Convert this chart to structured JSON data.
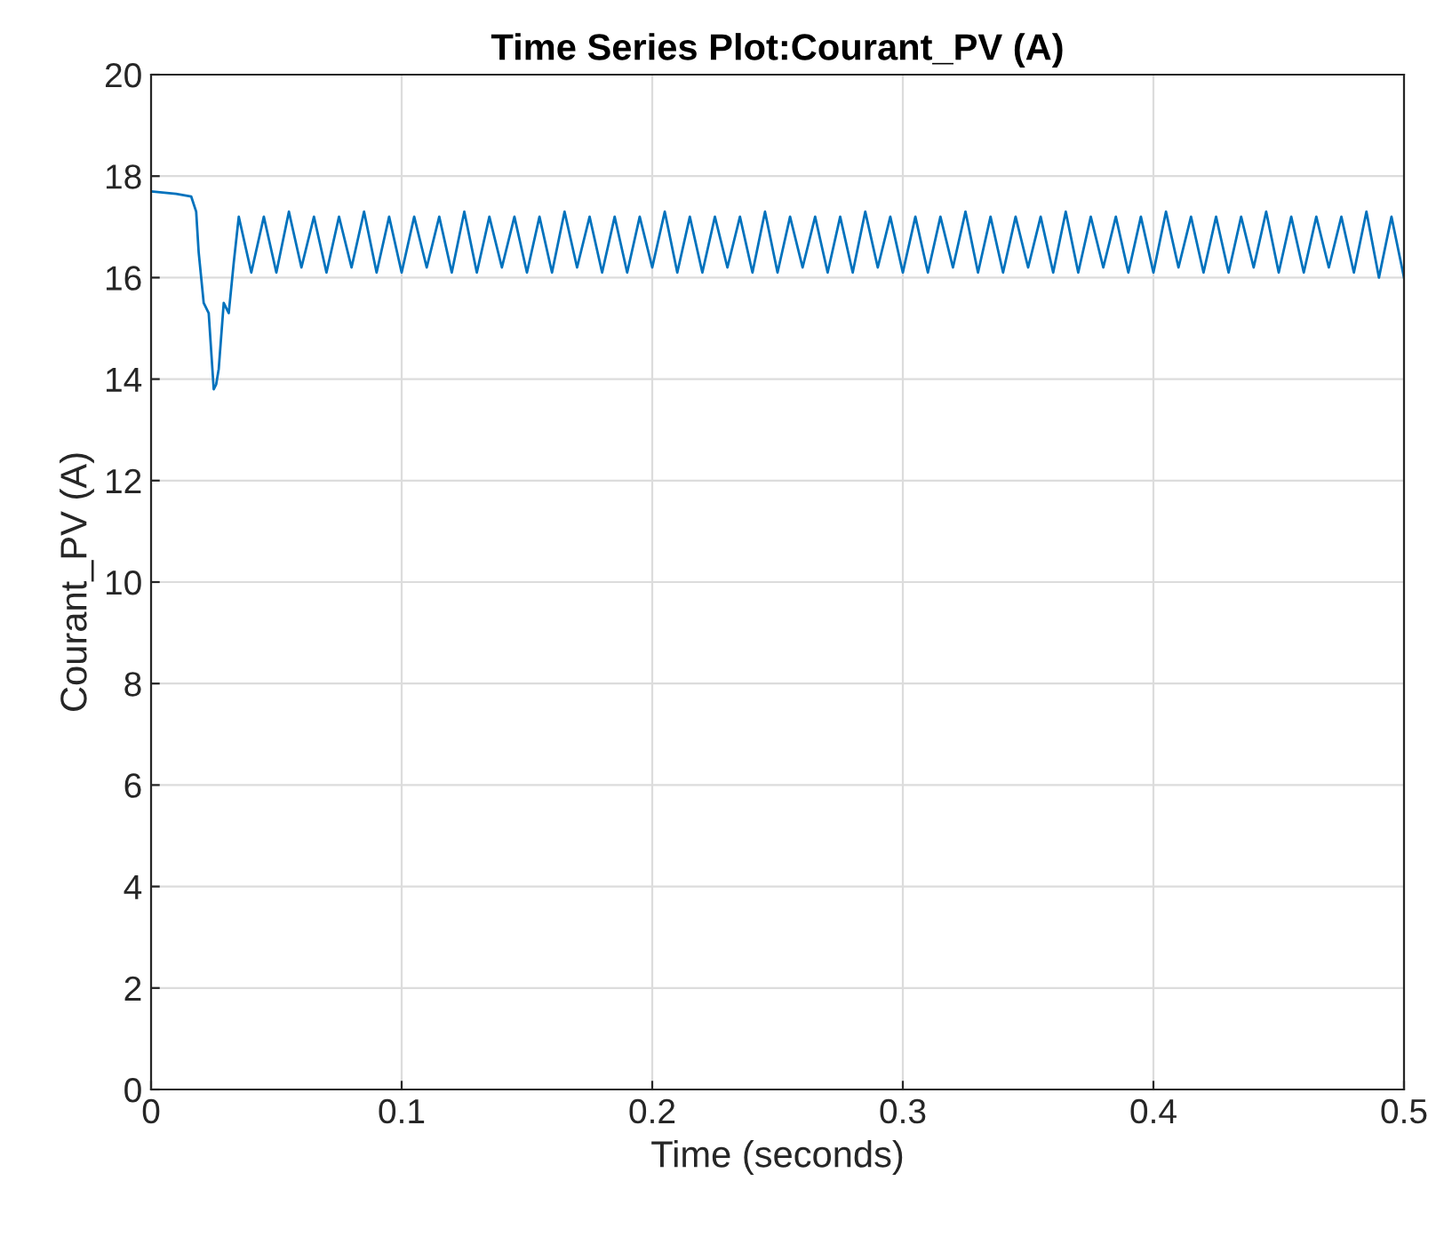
{
  "chart_data": {
    "type": "line",
    "title": "Time Series Plot:Courant_PV (A)",
    "xlabel": "Time (seconds)",
    "ylabel": "Courant_PV (A)",
    "xlim": [
      0,
      0.5
    ],
    "ylim": [
      0,
      20
    ],
    "xticks": [
      0,
      0.1,
      0.2,
      0.3,
      0.4,
      0.5
    ],
    "yticks": [
      0,
      2,
      4,
      6,
      8,
      10,
      12,
      14,
      16,
      18,
      20
    ],
    "grid": true,
    "series": [
      {
        "color": "#0072bd",
        "x": [
          0,
          0.01,
          0.016,
          0.018,
          0.019,
          0.021,
          0.023,
          0.025,
          0.026,
          0.027,
          0.029,
          0.031,
          0.033,
          0.035,
          0.04,
          0.045,
          0.05,
          0.055,
          0.06,
          0.065,
          0.07,
          0.075,
          0.08,
          0.085,
          0.09,
          0.095,
          0.1,
          0.105,
          0.11,
          0.115,
          0.12,
          0.125,
          0.13,
          0.135,
          0.14,
          0.145,
          0.15,
          0.155,
          0.16,
          0.165,
          0.17,
          0.175,
          0.18,
          0.185,
          0.19,
          0.195,
          0.2,
          0.205,
          0.21,
          0.215,
          0.22,
          0.225,
          0.23,
          0.235,
          0.24,
          0.245,
          0.25,
          0.255,
          0.26,
          0.265,
          0.27,
          0.275,
          0.28,
          0.285,
          0.29,
          0.295,
          0.3,
          0.305,
          0.31,
          0.315,
          0.32,
          0.325,
          0.33,
          0.335,
          0.34,
          0.345,
          0.35,
          0.355,
          0.36,
          0.365,
          0.37,
          0.375,
          0.38,
          0.385,
          0.39,
          0.395,
          0.4,
          0.405,
          0.41,
          0.415,
          0.42,
          0.425,
          0.43,
          0.435,
          0.44,
          0.445,
          0.45,
          0.455,
          0.46,
          0.465,
          0.47,
          0.475,
          0.48,
          0.485,
          0.49,
          0.495,
          0.5
        ],
        "values": [
          17.7,
          17.65,
          17.6,
          17.3,
          16.5,
          15.5,
          15.3,
          13.8,
          13.9,
          14.2,
          15.5,
          15.3,
          16.3,
          17.2,
          16.1,
          17.2,
          16.1,
          17.3,
          16.2,
          17.2,
          16.1,
          17.2,
          16.2,
          17.3,
          16.1,
          17.2,
          16.1,
          17.2,
          16.2,
          17.2,
          16.1,
          17.3,
          16.1,
          17.2,
          16.2,
          17.2,
          16.1,
          17.2,
          16.1,
          17.3,
          16.2,
          17.2,
          16.1,
          17.2,
          16.1,
          17.2,
          16.2,
          17.3,
          16.1,
          17.2,
          16.1,
          17.2,
          16.2,
          17.2,
          16.1,
          17.3,
          16.1,
          17.2,
          16.2,
          17.2,
          16.1,
          17.2,
          16.1,
          17.3,
          16.2,
          17.2,
          16.1,
          17.2,
          16.1,
          17.2,
          16.2,
          17.3,
          16.1,
          17.2,
          16.1,
          17.2,
          16.2,
          17.2,
          16.1,
          17.3,
          16.1,
          17.2,
          16.2,
          17.2,
          16.1,
          17.2,
          16.1,
          17.3,
          16.2,
          17.2,
          16.1,
          17.2,
          16.1,
          17.2,
          16.2,
          17.3,
          16.1,
          17.2,
          16.1,
          17.2,
          16.2,
          17.2,
          16.1,
          17.3,
          16.0,
          17.2,
          16.0
        ]
      }
    ]
  }
}
